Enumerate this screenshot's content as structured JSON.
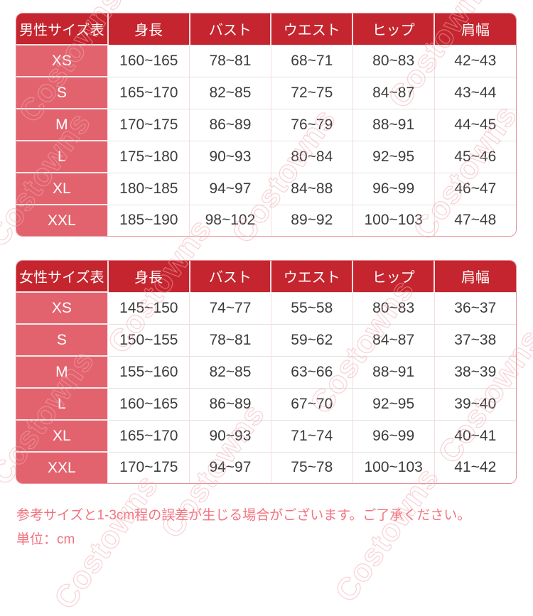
{
  "watermark": {
    "text": "Costowns"
  },
  "tables": [
    {
      "title": "男性サイズ表",
      "columns": [
        "身長",
        "バスト",
        "ウエスト",
        "ヒップ",
        "肩幅"
      ],
      "rows": [
        {
          "size": "XS",
          "values": [
            "160~165",
            "78~81",
            "68~71",
            "80~83",
            "42~43"
          ]
        },
        {
          "size": "S",
          "values": [
            "165~170",
            "82~85",
            "72~75",
            "84~87",
            "43~44"
          ]
        },
        {
          "size": "M",
          "values": [
            "170~175",
            "86~89",
            "76~79",
            "88~91",
            "44~45"
          ]
        },
        {
          "size": "L",
          "values": [
            "175~180",
            "90~93",
            "80~84",
            "92~95",
            "45~46"
          ]
        },
        {
          "size": "XL",
          "values": [
            "180~185",
            "94~97",
            "84~88",
            "96~99",
            "46~47"
          ]
        },
        {
          "size": "XXL",
          "values": [
            "185~190",
            "98~102",
            "89~92",
            "100~103",
            "47~48"
          ]
        }
      ]
    },
    {
      "title": "女性サイズ表",
      "columns": [
        "身長",
        "バスト",
        "ウエスト",
        "ヒップ",
        "肩幅"
      ],
      "rows": [
        {
          "size": "XS",
          "values": [
            "145~150",
            "74~77",
            "55~58",
            "80~83",
            "36~37"
          ]
        },
        {
          "size": "S",
          "values": [
            "150~155",
            "78~81",
            "59~62",
            "84~87",
            "37~38"
          ]
        },
        {
          "size": "M",
          "values": [
            "155~160",
            "82~85",
            "63~66",
            "88~91",
            "38~39"
          ]
        },
        {
          "size": "L",
          "values": [
            "160~165",
            "86~89",
            "67~70",
            "92~95",
            "39~40"
          ]
        },
        {
          "size": "XL",
          "values": [
            "165~170",
            "90~93",
            "71~74",
            "96~99",
            "40~41"
          ]
        },
        {
          "size": "XXL",
          "values": [
            "170~175",
            "94~97",
            "75~78",
            "100~103",
            "41~42"
          ]
        }
      ]
    }
  ],
  "notes": {
    "line1": "参考サイズと1-3cm程の誤差が生じる場合がございます。ご了承ください。",
    "line2": "単位：cm"
  },
  "colors": {
    "header_red": "#c5252e",
    "size_pink": "#e2636e",
    "note_pink": "#f2737f",
    "watermark_pink": "#f2aab2",
    "cell_text": "#3c3c3c"
  }
}
